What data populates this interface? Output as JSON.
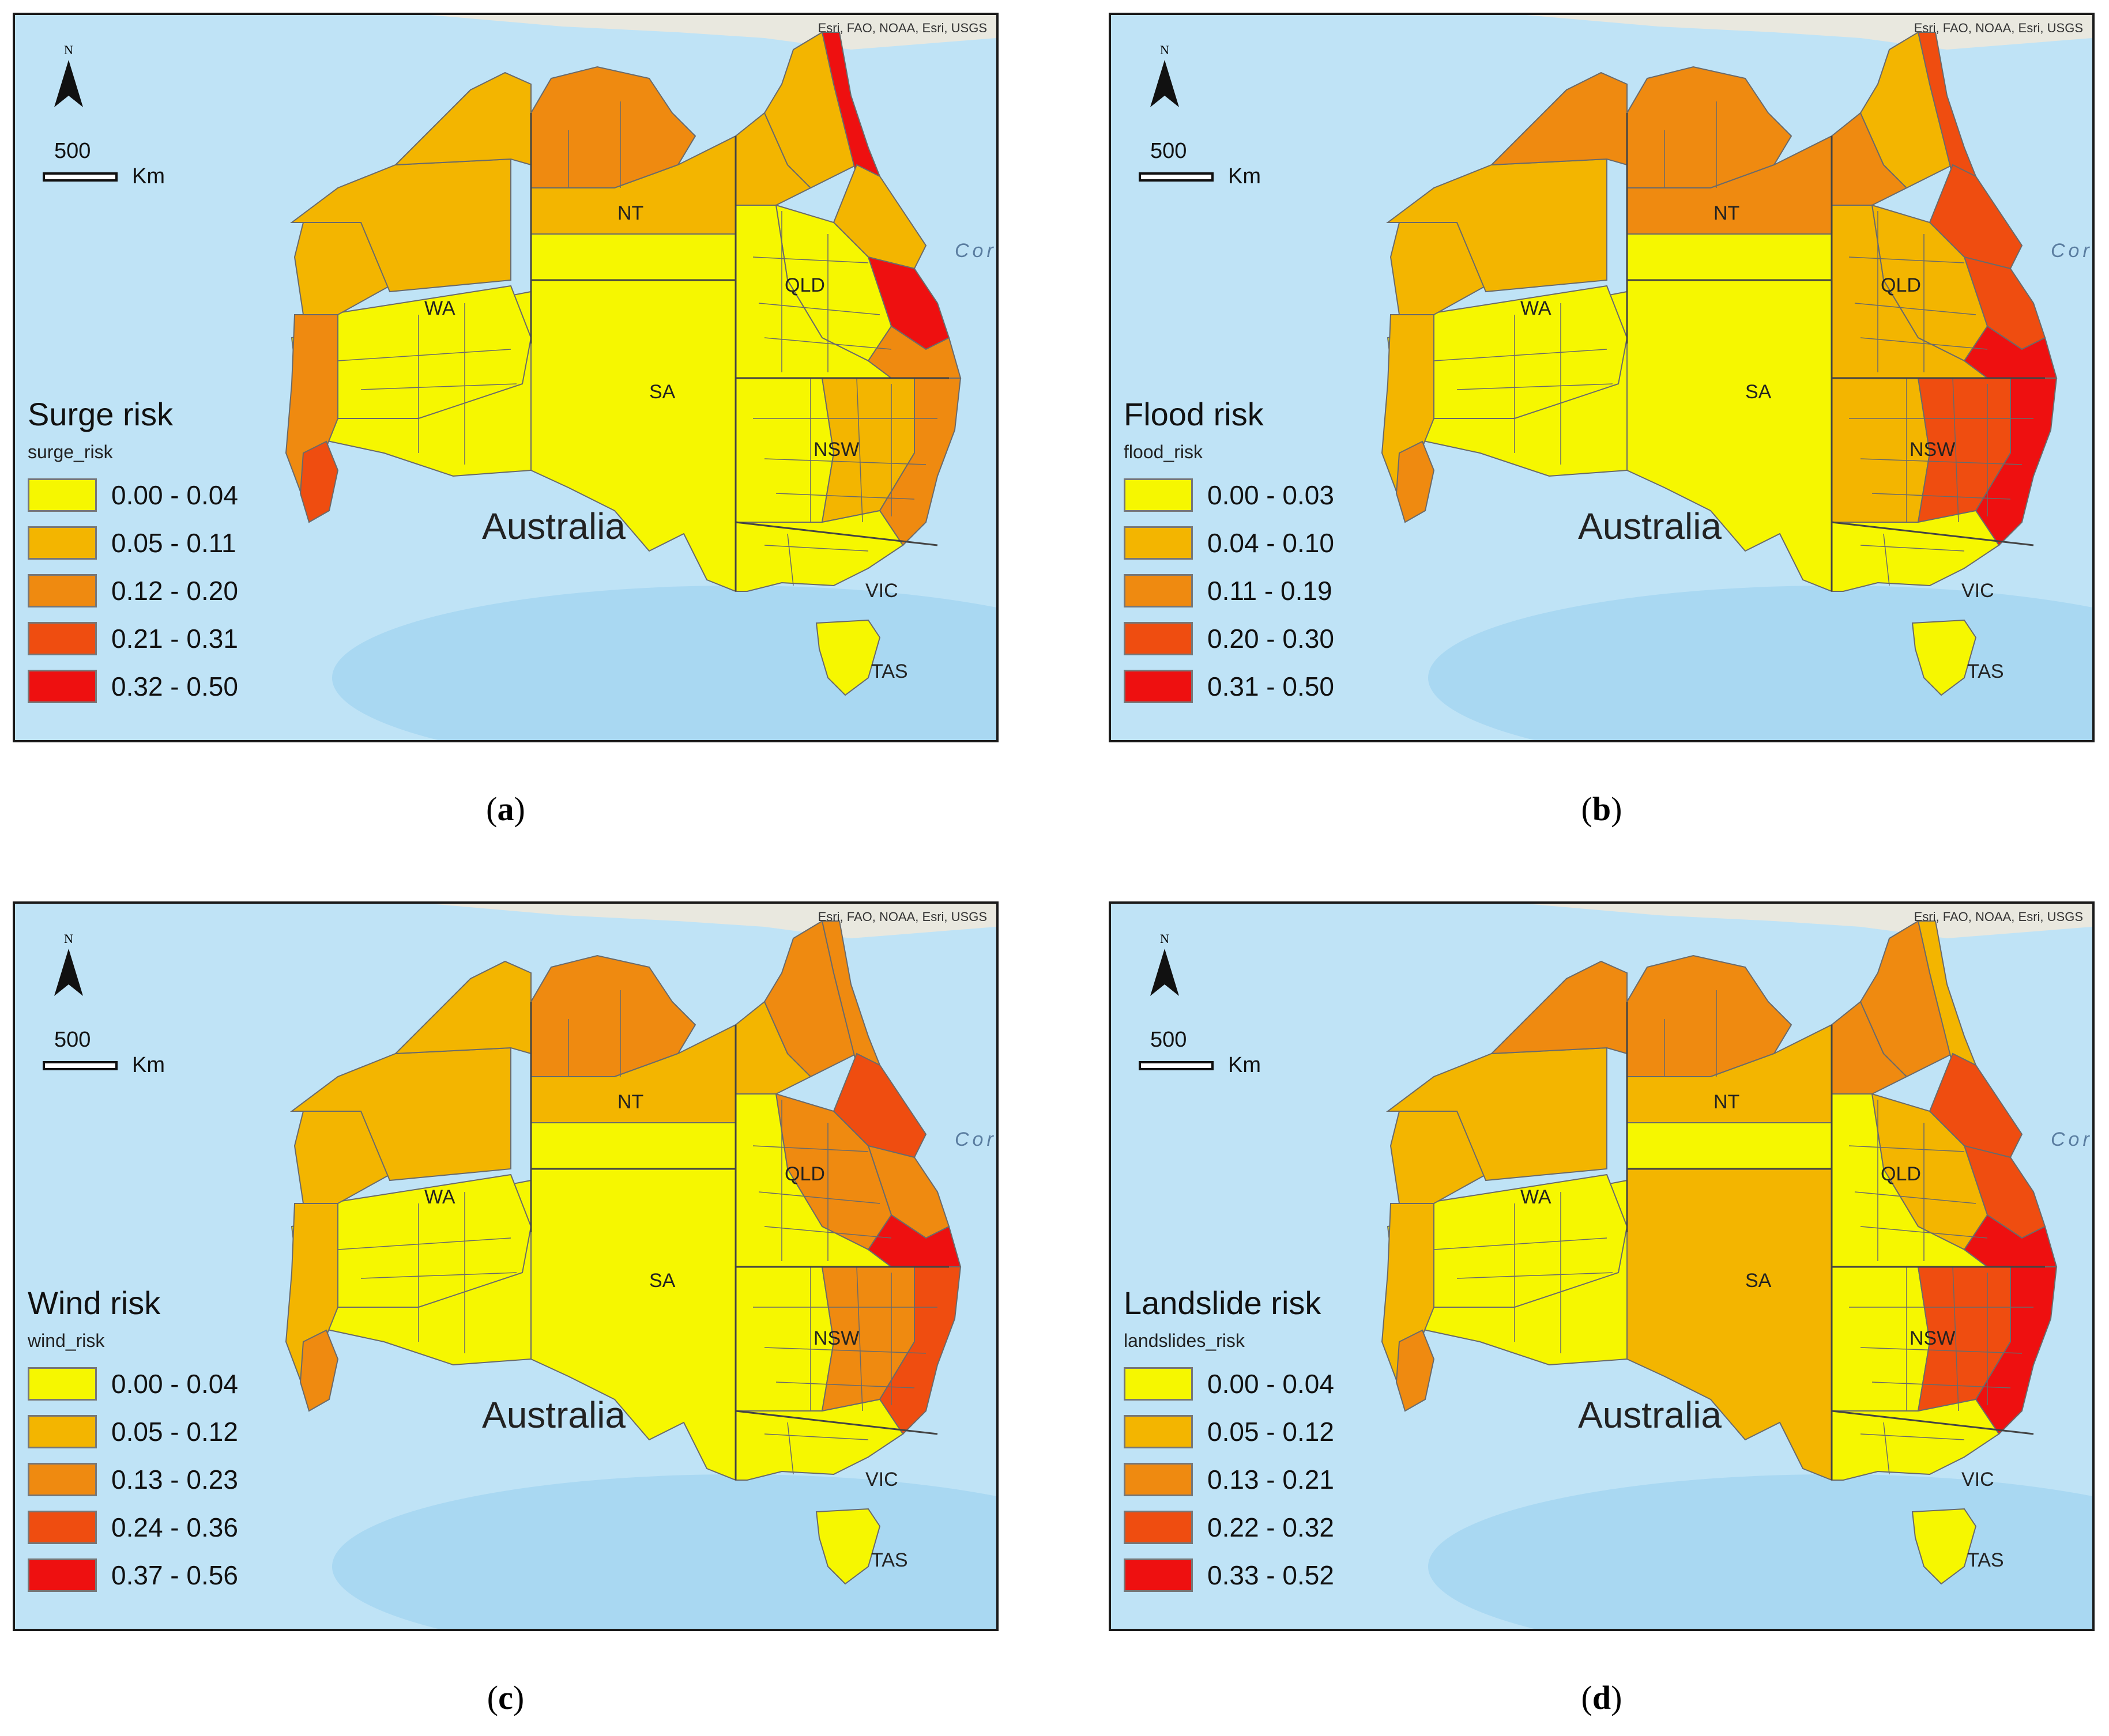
{
  "attribution": "Esri, FAO, NOAA, Esri, USGS",
  "north_label": "N",
  "scale": {
    "value": "500",
    "unit": "Km"
  },
  "country_label": "Australia",
  "sea_label": "Cor",
  "state_labels": {
    "nt": "NT",
    "wa": "WA",
    "qld": "QLD",
    "sa": "SA",
    "nsw": "NSW",
    "vic": "VIC",
    "tas": "TAS"
  },
  "colors": {
    "ocean": "#bfe3f6",
    "ocean_deep": "#a9d8f2",
    "land_outside": "#e9e8df",
    "class": [
      "#f6f700",
      "#f3b500",
      "#ef8a10",
      "#ef4d10",
      "#ee1010"
    ],
    "boundary": "#6a6a6a"
  },
  "panels": [
    {
      "caption": "a",
      "legend_title": "Surge risk",
      "field": "surge_risk",
      "classes": [
        "0.00 - 0.04",
        "0.05 - 0.11",
        "0.12 - 0.20",
        "0.21 - 0.31",
        "0.32 - 0.50"
      ],
      "region_levels": {
        "kimberley": 1,
        "pilbara": 1,
        "gascoyne": 1,
        "wa_coast_sw": 2,
        "wa_interior": 0,
        "wa_wheat": 0,
        "topend": 2,
        "nt_north": 1,
        "nt_central": 0,
        "sa": 0,
        "qld_gulf": 1,
        "cape_york": 1,
        "cape_coast": 4,
        "qld_ne_coast": 1,
        "qld_central_coast": 4,
        "qld_se": 2,
        "qld_interior": 0,
        "qld_central": 0,
        "nsw_east": 1,
        "nsw_coast": 2,
        "nsw_west": 0,
        "vic": 0,
        "tas": 0,
        "perth": 3
      }
    },
    {
      "caption": "b",
      "legend_title": "Flood risk",
      "field": "flood_risk",
      "classes": [
        "0.00 - 0.03",
        "0.04 - 0.10",
        "0.11 - 0.19",
        "0.20 - 0.30",
        "0.31 - 0.50"
      ],
      "region_levels": {
        "kimberley": 2,
        "pilbara": 1,
        "gascoyne": 1,
        "wa_coast_sw": 1,
        "wa_interior": 0,
        "wa_wheat": 0,
        "topend": 2,
        "nt_north": 2,
        "nt_central": 0,
        "sa": 0,
        "qld_gulf": 2,
        "cape_york": 1,
        "cape_coast": 3,
        "qld_ne_coast": 3,
        "qld_central_coast": 3,
        "qld_se": 4,
        "qld_interior": 1,
        "qld_central": 1,
        "nsw_east": 3,
        "nsw_coast": 4,
        "nsw_west": 1,
        "vic": 0,
        "tas": 0,
        "perth": 2
      }
    },
    {
      "caption": "c",
      "legend_title": "Wind risk",
      "field": "wind_risk",
      "classes": [
        "0.00 - 0.04",
        "0.05 - 0.12",
        "0.13 - 0.23",
        "0.24 - 0.36",
        "0.37 - 0.56"
      ],
      "region_levels": {
        "kimberley": 1,
        "pilbara": 1,
        "gascoyne": 1,
        "wa_coast_sw": 1,
        "wa_interior": 0,
        "wa_wheat": 0,
        "topend": 2,
        "nt_north": 1,
        "nt_central": 0,
        "sa": 0,
        "qld_gulf": 1,
        "cape_york": 2,
        "cape_coast": 2,
        "qld_ne_coast": 3,
        "qld_central_coast": 2,
        "qld_se": 4,
        "qld_interior": 0,
        "qld_central": 2,
        "nsw_east": 2,
        "nsw_coast": 3,
        "nsw_west": 0,
        "vic": 0,
        "tas": 0,
        "perth": 2
      }
    },
    {
      "caption": "d",
      "legend_title": "Landslide risk",
      "field": "landslides_risk",
      "classes": [
        "0.00 - 0.04",
        "0.05 - 0.12",
        "0.13 - 0.21",
        "0.22 - 0.32",
        "0.33 - 0.52"
      ],
      "region_levels": {
        "kimberley": 2,
        "pilbara": 1,
        "gascoyne": 1,
        "wa_coast_sw": 1,
        "wa_interior": 0,
        "wa_wheat": 0,
        "topend": 2,
        "nt_north": 1,
        "nt_central": 0,
        "sa": 1,
        "qld_gulf": 2,
        "cape_york": 2,
        "cape_coast": 1,
        "qld_ne_coast": 3,
        "qld_central_coast": 3,
        "qld_se": 4,
        "qld_interior": 0,
        "qld_central": 1,
        "nsw_east": 3,
        "nsw_coast": 4,
        "nsw_west": 0,
        "vic": 0,
        "tas": 0,
        "perth": 2
      }
    }
  ]
}
